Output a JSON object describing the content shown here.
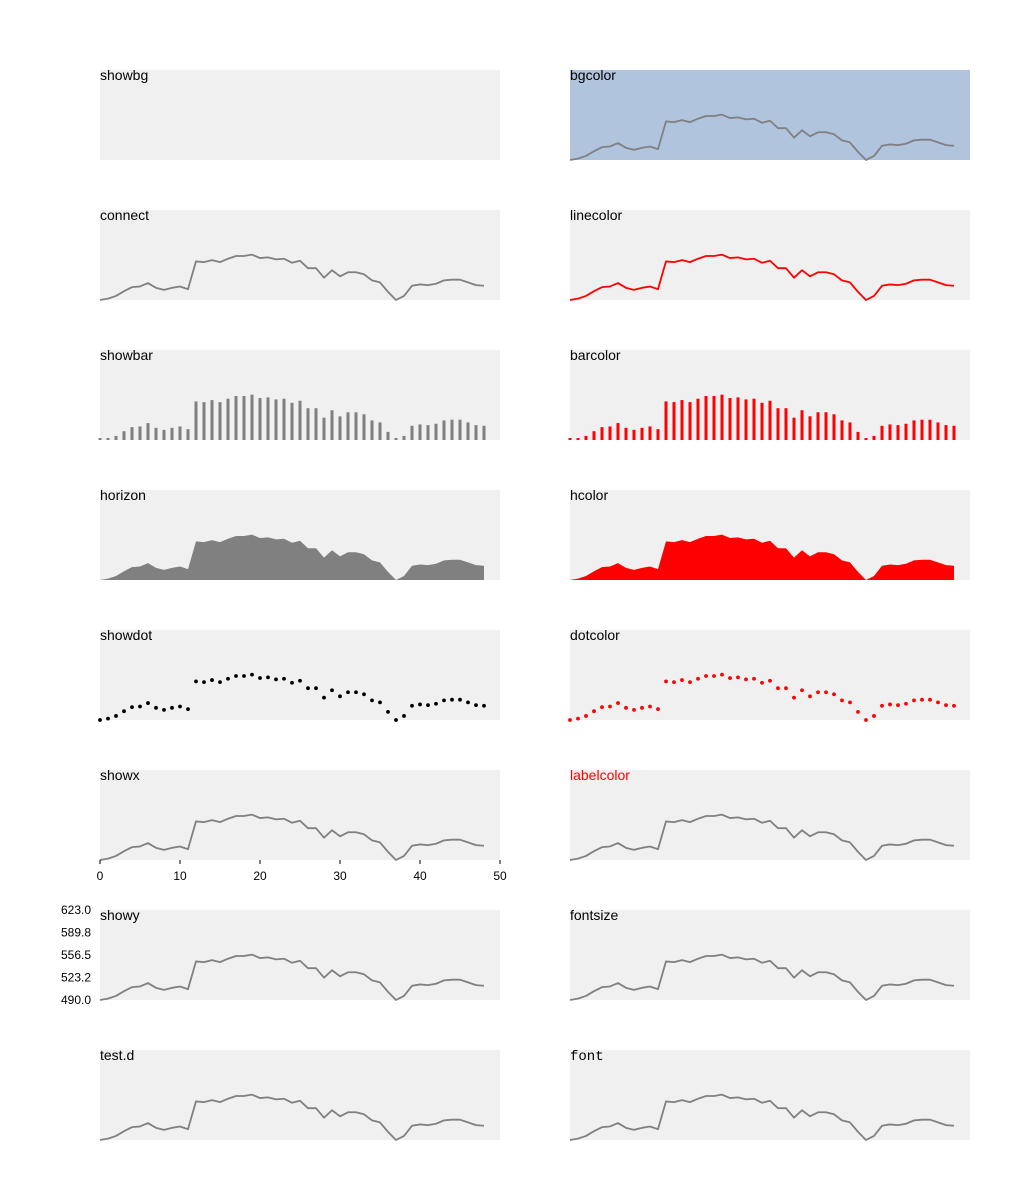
{
  "chart_data": {
    "type": "line",
    "x": [
      0,
      1,
      2,
      3,
      4,
      5,
      6,
      7,
      8,
      9,
      10,
      11,
      12,
      13,
      14,
      15,
      16,
      17,
      18,
      19,
      20,
      21,
      22,
      23,
      24,
      25,
      26,
      27,
      28,
      29,
      30,
      31,
      32,
      33,
      34,
      35,
      36,
      37,
      38,
      39,
      40,
      41,
      42,
      43,
      44,
      45,
      46,
      47,
      48,
      49,
      50
    ],
    "values": [
      490,
      492,
      496,
      503,
      509,
      510,
      515,
      508,
      505,
      508,
      510,
      506,
      547,
      546,
      549,
      546,
      551,
      555,
      555,
      557,
      552,
      553,
      550,
      551,
      545,
      548,
      537,
      537,
      523,
      534,
      525,
      531,
      531,
      528,
      519,
      516,
      502,
      490,
      496,
      511,
      513,
      512,
      514,
      519,
      520,
      520,
      516,
      512,
      511,
      null,
      null
    ],
    "xlim": [
      0,
      50
    ],
    "ylim": [
      490.0,
      623.0
    ],
    "x_ticks": [
      "0",
      "10",
      "20",
      "30",
      "40",
      "50"
    ],
    "y_ticks": [
      "623.0",
      "589.8",
      "556.5",
      "523.2",
      "490.0"
    ],
    "panels": [
      {
        "label": "showbg",
        "style": "bg-only"
      },
      {
        "label": "bgcolor",
        "style": "line",
        "bg": "#b0c4de"
      },
      {
        "label": "connect",
        "style": "line"
      },
      {
        "label": "linecolor",
        "style": "line",
        "color": "#ff0000"
      },
      {
        "label": "showbar",
        "style": "bar"
      },
      {
        "label": "barcolor",
        "style": "bar",
        "color": "#ff0000"
      },
      {
        "label": "horizon",
        "style": "area"
      },
      {
        "label": "hcolor",
        "style": "area",
        "color": "#ff0000"
      },
      {
        "label": "showdot",
        "style": "dot",
        "color": "#000000"
      },
      {
        "label": "dotcolor",
        "style": "dot",
        "color": "#ff0000"
      },
      {
        "label": "showx",
        "style": "line",
        "xaxis": true
      },
      {
        "label": "labelcolor",
        "style": "line",
        "labelColor": "#ff0000"
      },
      {
        "label": "showy",
        "style": "line",
        "yaxis": true
      },
      {
        "label": "fontsize",
        "style": "line"
      },
      {
        "label": "test.d",
        "style": "line"
      },
      {
        "label": "font",
        "style": "line",
        "mono": true
      }
    ],
    "colors": {
      "panel_bg": "#f0f0f0",
      "default_line": "#808080"
    }
  }
}
